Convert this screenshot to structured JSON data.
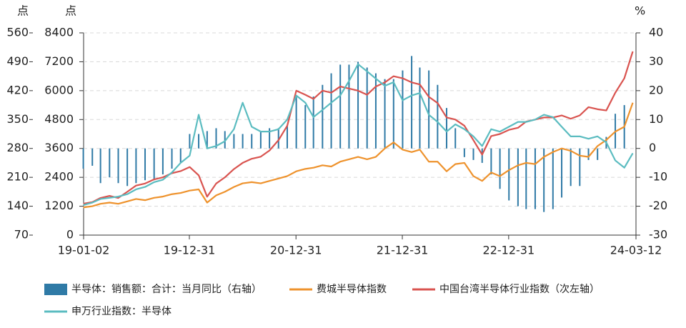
{
  "chart_data": {
    "type": "combo",
    "y3_unit": "点",
    "y_unit": "点",
    "y2_unit": "%",
    "xlim": [
      "2019-01-02",
      "2024-03-12"
    ],
    "xticks": [
      {
        "value": "2019-01-02",
        "label": "19-01-02"
      },
      {
        "value": "2019-12-31",
        "label": "19-12-31"
      },
      {
        "value": "2020-12-31",
        "label": "20-12-31"
      },
      {
        "value": "2021-12-31",
        "label": "21-12-31"
      },
      {
        "value": "2022-12-31",
        "label": "22-12-31"
      },
      {
        "value": "2024-03-12",
        "label": "24-03-12"
      }
    ],
    "ylim": [
      0,
      8400
    ],
    "yticks": [
      0,
      1200,
      2400,
      3600,
      4800,
      6000,
      7200,
      8400
    ],
    "y3lim": [
      70,
      560
    ],
    "y3ticks": [
      70,
      140,
      210,
      280,
      350,
      420,
      490,
      560
    ],
    "y2lim": [
      -30,
      40
    ],
    "y2ticks": [
      -30,
      -20,
      -10,
      0,
      10,
      20,
      30,
      40
    ],
    "grid": true,
    "x": [
      "2019-01",
      "2019-02",
      "2019-03",
      "2019-04",
      "2019-05",
      "2019-06",
      "2019-07",
      "2019-08",
      "2019-09",
      "2019-10",
      "2019-11",
      "2019-12",
      "2020-01",
      "2020-02",
      "2020-03",
      "2020-04",
      "2020-05",
      "2020-06",
      "2020-07",
      "2020-08",
      "2020-09",
      "2020-10",
      "2020-11",
      "2020-12",
      "2021-01",
      "2021-02",
      "2021-03",
      "2021-04",
      "2021-05",
      "2021-06",
      "2021-07",
      "2021-08",
      "2021-09",
      "2021-10",
      "2021-11",
      "2021-12",
      "2022-01",
      "2022-02",
      "2022-03",
      "2022-04",
      "2022-05",
      "2022-06",
      "2022-07",
      "2022-08",
      "2022-09",
      "2022-10",
      "2022-11",
      "2022-12",
      "2023-01",
      "2023-02",
      "2023-03",
      "2023-04",
      "2023-05",
      "2023-06",
      "2023-07",
      "2023-08",
      "2023-09",
      "2023-10",
      "2023-11",
      "2023-12",
      "2024-01",
      "2024-02",
      "2024-03"
    ],
    "series": [
      {
        "name": "半导体：销售额：合计：当月同比（右轴）",
        "type": "bar",
        "axis": "y2",
        "color": "#2f7aa6",
        "values": [
          -7,
          -6,
          -12,
          -10,
          -12,
          -13,
          -12,
          -11,
          -11,
          -9,
          -7,
          -5,
          5,
          5,
          6,
          7,
          6,
          5,
          5,
          5,
          6,
          7,
          7,
          8,
          18,
          15,
          18,
          22,
          26,
          29,
          29,
          30,
          28,
          26,
          24,
          24,
          27,
          32,
          28,
          27,
          22,
          14,
          7,
          -3,
          -4,
          -5,
          -9,
          -14,
          -18,
          -20,
          -21,
          -21,
          -22,
          -21,
          -17,
          -13,
          -13,
          -4,
          -4,
          4,
          12,
          15,
          null
        ]
      },
      {
        "name": "费城半导体指数",
        "type": "line",
        "axis": "y",
        "color": "#ee922c",
        "values": [
          1150,
          1200,
          1300,
          1350,
          1300,
          1400,
          1500,
          1450,
          1550,
          1600,
          1700,
          1750,
          1850,
          1900,
          1350,
          1650,
          1800,
          2000,
          2150,
          2200,
          2150,
          2250,
          2350,
          2450,
          2650,
          2750,
          2800,
          2900,
          2850,
          3050,
          3150,
          3250,
          3150,
          3250,
          3600,
          3850,
          3550,
          3450,
          3550,
          3050,
          3050,
          2650,
          2950,
          3000,
          2450,
          2250,
          2600,
          2450,
          2700,
          2900,
          3000,
          2950,
          3250,
          3450,
          3600,
          3500,
          3300,
          3250,
          3700,
          3950,
          4300,
          4500,
          5500
        ]
      },
      {
        "name": "中国台湾半导体行业指数（次左轴）",
        "type": "line",
        "axis": "y3",
        "color": "#d9534f",
        "values": [
          146,
          150,
          160,
          165,
          160,
          175,
          190,
          195,
          205,
          210,
          220,
          225,
          235,
          215,
          163,
          195,
          210,
          230,
          245,
          255,
          260,
          275,
          300,
          335,
          420,
          410,
          400,
          420,
          415,
          430,
          425,
          420,
          410,
          430,
          440,
          455,
          450,
          440,
          435,
          405,
          390,
          355,
          350,
          335,
          300,
          265,
          310,
          315,
          325,
          330,
          345,
          350,
          355,
          355,
          360,
          352,
          360,
          380,
          375,
          372,
          415,
          450,
          515
        ]
      },
      {
        "name": "申万行业指数：半导体",
        "type": "line",
        "axis": "y",
        "color": "#5bbcc0",
        "values": [
          1250,
          1350,
          1500,
          1550,
          1600,
          1700,
          1900,
          2000,
          2200,
          2300,
          2600,
          3000,
          3300,
          5000,
          3600,
          3700,
          3900,
          4400,
          5500,
          4500,
          4300,
          4300,
          4400,
          4800,
          5800,
          5500,
          4900,
          5200,
          5500,
          5800,
          6400,
          7100,
          6800,
          6500,
          6200,
          6350,
          5600,
          5800,
          5900,
          5000,
          4700,
          4300,
          4600,
          4400,
          4100,
          3700,
          4400,
          4300,
          4500,
          4700,
          4700,
          4800,
          5000,
          4900,
          4500,
          4100,
          4100,
          4000,
          4100,
          3850,
          3100,
          2800,
          3400
        ]
      }
    ]
  }
}
